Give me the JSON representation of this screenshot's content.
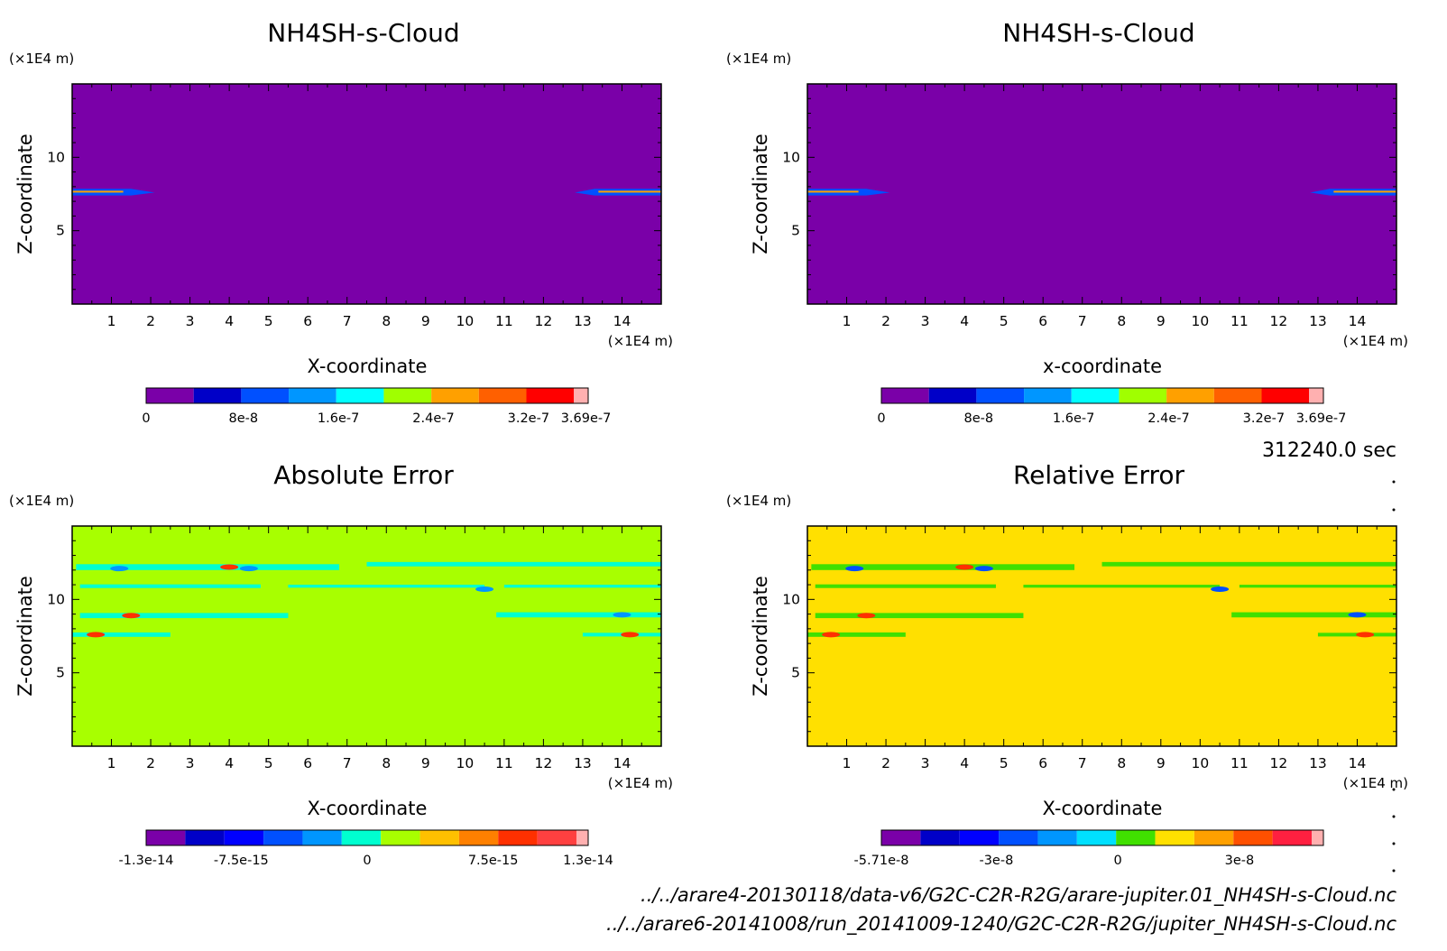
{
  "time_label": "312240.0 sec",
  "files": [
    "../../arare4-20130118/data-v6/G2C-C2R-R2G/arare-jupiter.01_NH4SH-s-Cloud.nc",
    "../../arare6-20141008/run_20141009-1240/G2C-C2R-R2G/jupiter_NH4SH-s-Cloud.nc"
  ],
  "chart_data": [
    {
      "type": "heatmap",
      "title": "NH4SH-s-Cloud",
      "xlabel": "X-coordinate",
      "ylabel": "Z-coordinate",
      "x_unit": "(×1E4 m)",
      "y_unit": "(×1E4 m)",
      "xlim": [
        0,
        15
      ],
      "ylim": [
        0,
        15
      ],
      "xticks": [
        "1",
        "2",
        "3",
        "4",
        "5",
        "6",
        "7",
        "8",
        "9",
        "10",
        "11",
        "12",
        "13",
        "14"
      ],
      "yticks": [
        "5",
        "10"
      ],
      "background_color": "#7a00a8",
      "colorbar": {
        "colors": [
          "#7a00a8",
          "#0000c8",
          "#0050ff",
          "#0096ff",
          "#00ffff",
          "#a0ff00",
          "#ffa000",
          "#ff6000",
          "#ff0000",
          "#ffb0b0"
        ],
        "labels": [
          "0",
          "8e-8",
          "1.6e-7",
          "2.4e-7",
          "3.2e-7",
          "3.69e-7"
        ]
      }
    },
    {
      "type": "heatmap",
      "title": "NH4SH-s-Cloud",
      "xlabel": "x-coordinate",
      "ylabel": "Z-coordinate",
      "x_unit": "(×1E4 m)",
      "y_unit": "(×1E4 m)",
      "xlim": [
        0,
        15
      ],
      "ylim": [
        0,
        15
      ],
      "xticks": [
        "1",
        "2",
        "3",
        "4",
        "5",
        "6",
        "7",
        "8",
        "9",
        "10",
        "11",
        "12",
        "13",
        "14"
      ],
      "yticks": [
        "5",
        "10"
      ],
      "background_color": "#7a00a8",
      "colorbar": {
        "colors": [
          "#7a00a8",
          "#0000c8",
          "#0050ff",
          "#0096ff",
          "#00ffff",
          "#a0ff00",
          "#ffa000",
          "#ff6000",
          "#ff0000",
          "#ffb0b0"
        ],
        "labels": [
          "0",
          "8e-8",
          "1.6e-7",
          "2.4e-7",
          "3.2e-7",
          "3.69e-7"
        ]
      }
    },
    {
      "type": "heatmap",
      "title": "Absolute Error",
      "xlabel": "X-coordinate",
      "ylabel": "Z-coordinate",
      "x_unit": "(×1E4 m)",
      "y_unit": "(×1E4 m)",
      "xlim": [
        0,
        15
      ],
      "ylim": [
        0,
        15
      ],
      "xticks": [
        "1",
        "2",
        "3",
        "4",
        "5",
        "6",
        "7",
        "8",
        "9",
        "10",
        "11",
        "12",
        "13",
        "14"
      ],
      "yticks": [
        "5",
        "10"
      ],
      "background_color": "#a8ff00",
      "colorbar": {
        "colors": [
          "#7a00a8",
          "#0000c8",
          "#0000ff",
          "#0050ff",
          "#0096ff",
          "#00ffd0",
          "#a8ff00",
          "#ffc000",
          "#ff8000",
          "#ff3000",
          "#ff4040",
          "#ffb0b0"
        ],
        "labels": [
          "-1.3e-14",
          "-7.5e-15",
          "0",
          "7.5e-15",
          "1.3e-14"
        ]
      }
    },
    {
      "type": "heatmap",
      "title": "Relative Error",
      "xlabel": "X-coordinate",
      "ylabel": "Z-coordinate",
      "x_unit": "(×1E4 m)",
      "y_unit": "(×1E4 m)",
      "xlim": [
        0,
        15
      ],
      "ylim": [
        0,
        15
      ],
      "xticks": [
        "1",
        "2",
        "3",
        "4",
        "5",
        "6",
        "7",
        "8",
        "9",
        "10",
        "11",
        "12",
        "13",
        "14"
      ],
      "yticks": [
        "5",
        "10"
      ],
      "background_color": "#ffe000",
      "colorbar": {
        "colors": [
          "#7a00a8",
          "#0000c8",
          "#0000ff",
          "#0050ff",
          "#0096ff",
          "#00e0ff",
          "#40e000",
          "#ffe000",
          "#ffa000",
          "#ff5000",
          "#ff2040",
          "#ffb0b0"
        ],
        "labels": [
          "-5.71e-8",
          "-3e-8",
          "0",
          "3e-8"
        ]
      }
    }
  ]
}
